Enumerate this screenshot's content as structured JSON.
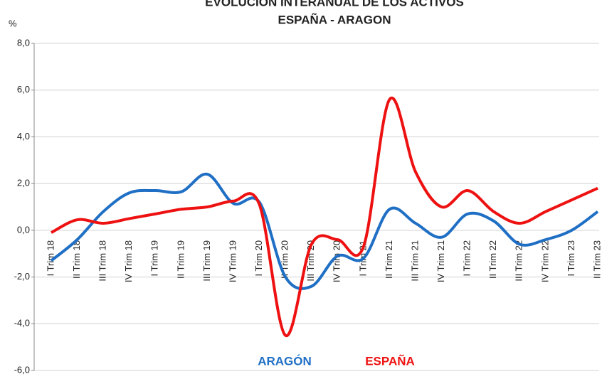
{
  "chart_data": {
    "type": "line",
    "title": "EVOLUCIÓN INTERANUAL DE LOS ACTIVOS",
    "subtitle": "ESPAÑA - ARAGON",
    "y_label": "%",
    "categories": [
      "I Trim 18",
      "II Trim 18",
      "III Trim 18",
      "IV Trim 18",
      "I Trim 19",
      "II Trim 19",
      "III Trim 19",
      "IV Trim 19",
      "I Trim 20",
      "II Trim 20",
      "III Trim 20",
      "IV Trim 20",
      "I Trim 21",
      "II Trim 21",
      "III Trim 21",
      "IV Trim 21",
      "I Trim 22",
      "II Trim 22",
      "III Trim 22",
      "IV Trim 22",
      "I Trim 23",
      "II Trim 23"
    ],
    "series": [
      {
        "name": "ARAGÓN",
        "color": "#1f6fc5",
        "values": [
          -1.3,
          -0.4,
          0.8,
          1.6,
          1.7,
          1.65,
          2.4,
          1.15,
          1.2,
          -2.0,
          -2.4,
          -1.1,
          -1.2,
          0.9,
          0.3,
          -0.3,
          0.7,
          0.4,
          -0.6,
          -0.4,
          0.0,
          0.8
        ]
      },
      {
        "name": "ESPAÑA",
        "color": "#ee1111",
        "values": [
          -0.1,
          0.45,
          0.3,
          0.5,
          0.7,
          0.9,
          1.0,
          1.25,
          1.1,
          -4.5,
          -0.6,
          -0.4,
          -0.7,
          5.6,
          2.5,
          1.0,
          1.7,
          0.8,
          0.3,
          0.8,
          1.3,
          1.8
        ]
      }
    ],
    "ylim": [
      -6,
      8
    ],
    "yticks": [
      {
        "value": -6,
        "label": "-6,0"
      },
      {
        "value": -4,
        "label": "-4,0"
      },
      {
        "value": -2,
        "label": "-2,0"
      },
      {
        "value": 0,
        "label": "0,0"
      },
      {
        "value": 2,
        "label": "2,0"
      },
      {
        "value": 4,
        "label": "4,0"
      },
      {
        "value": 6,
        "label": "6,0"
      },
      {
        "value": 8,
        "label": "8,0"
      }
    ],
    "grid": true
  }
}
